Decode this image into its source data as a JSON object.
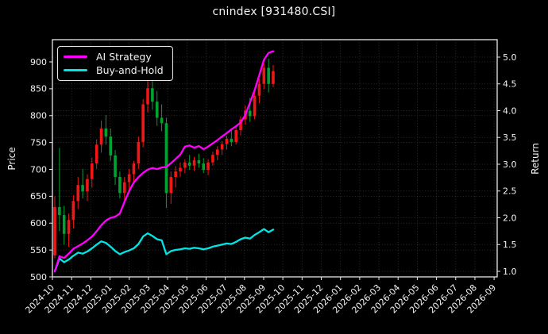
{
  "title": "cnindex [931480.CSI]",
  "axes": {
    "left_label": "Price",
    "right_label": "Return",
    "left_ticks": [
      900,
      850,
      800,
      750,
      700,
      650,
      600,
      550,
      500
    ],
    "right_ticks": [
      "5.0",
      "4.5",
      "4.0",
      "3.5",
      "3.0",
      "2.5",
      "2.0",
      "1.5",
      "1.0"
    ],
    "x_ticks": [
      "2024-10",
      "2024-11",
      "2024-12",
      "2025-01",
      "2025-02",
      "2025-03",
      "2025-04",
      "2025-05",
      "2025-06",
      "2025-07",
      "2025-08",
      "2025-09",
      "2025-10",
      "2025-11",
      "2025-12",
      "2026-01",
      "2026-02",
      "2026-03",
      "2026-04",
      "2026-05",
      "2026-06",
      "2026-07",
      "2026-08",
      "2026-09"
    ]
  },
  "legend": [
    {
      "label": "AI Strategy",
      "color": "#ff00ff"
    },
    {
      "label": "Buy-and-Hold",
      "color": "#00e5e5"
    }
  ],
  "colors": {
    "background": "#000000",
    "text": "#f2f2f2",
    "frame": "#e8e8e8",
    "grid": "#3a3a3a",
    "candle_up": "#f21616",
    "candle_down": "#00a332",
    "ai_line": "#ff00ff",
    "bnh_line": "#00e5e5"
  },
  "chart_data": {
    "type": "candlestick",
    "title": "cnindex [931480.CSI]",
    "ylabel_left": "Price",
    "ylabel_right": "Return",
    "price_ylim": [
      500,
      941
    ],
    "return_ylim": [
      1.0,
      5.43
    ],
    "x_axis_range": [
      "2024-10",
      "2026-09"
    ],
    "data_range": [
      "2024-10",
      "2025-09"
    ],
    "grid": "dotted, monthly vertical + both y-axes horizontal",
    "legend_position": "upper left",
    "sampling": "weekly approximation of daily candles",
    "candles": [
      [
        "2024-10-03",
        540,
        650,
        535,
        630
      ],
      [
        "2024-10-10",
        630,
        740,
        585,
        615
      ],
      [
        "2024-10-17",
        615,
        632,
        560,
        580
      ],
      [
        "2024-10-24",
        580,
        618,
        556,
        606
      ],
      [
        "2024-11-03",
        606,
        652,
        590,
        641
      ],
      [
        "2024-11-10",
        641,
        686,
        626,
        671
      ],
      [
        "2024-11-17",
        671,
        701,
        646,
        659
      ],
      [
        "2024-11-24",
        659,
        691,
        641,
        682
      ],
      [
        "2024-12-03",
        682,
        722,
        666,
        711
      ],
      [
        "2024-12-10",
        711,
        756,
        701,
        746
      ],
      [
        "2024-12-17",
        746,
        791,
        731,
        776
      ],
      [
        "2024-12-24",
        776,
        801,
        746,
        761
      ],
      [
        "2025-01-03",
        761,
        776,
        716,
        726
      ],
      [
        "2025-01-10",
        726,
        736,
        671,
        686
      ],
      [
        "2025-01-17",
        686,
        696,
        646,
        656
      ],
      [
        "2025-01-24",
        656,
        686,
        641,
        676
      ],
      [
        "2025-02-03",
        676,
        701,
        661,
        691
      ],
      [
        "2025-02-10",
        691,
        716,
        676,
        711
      ],
      [
        "2025-02-17",
        711,
        761,
        701,
        751
      ],
      [
        "2025-02-24",
        751,
        831,
        741,
        821
      ],
      [
        "2025-03-03",
        821,
        876,
        806,
        851
      ],
      [
        "2025-03-10",
        851,
        871,
        811,
        826
      ],
      [
        "2025-03-17",
        826,
        846,
        781,
        796
      ],
      [
        "2025-03-24",
        796,
        821,
        771,
        786
      ],
      [
        "2025-04-03",
        786,
        796,
        628,
        656
      ],
      [
        "2025-04-10",
        656,
        696,
        636,
        686
      ],
      [
        "2025-04-17",
        686,
        706,
        666,
        696
      ],
      [
        "2025-04-24",
        696,
        713,
        686,
        703
      ],
      [
        "2025-05-03",
        703,
        719,
        693,
        713
      ],
      [
        "2025-05-10",
        713,
        727,
        699,
        707
      ],
      [
        "2025-05-17",
        707,
        723,
        697,
        717
      ],
      [
        "2025-05-24",
        717,
        729,
        703,
        711
      ],
      [
        "2025-06-03",
        711,
        721,
        693,
        699
      ],
      [
        "2025-06-10",
        699,
        719,
        689,
        713
      ],
      [
        "2025-06-17",
        713,
        733,
        707,
        727
      ],
      [
        "2025-06-24",
        727,
        743,
        717,
        737
      ],
      [
        "2025-07-03",
        737,
        753,
        727,
        747
      ],
      [
        "2025-07-10",
        747,
        763,
        737,
        757
      ],
      [
        "2025-07-17",
        757,
        773,
        743,
        751
      ],
      [
        "2025-07-24",
        751,
        779,
        746,
        773
      ],
      [
        "2025-08-03",
        773,
        799,
        763,
        793
      ],
      [
        "2025-08-10",
        793,
        819,
        783,
        809
      ],
      [
        "2025-08-17",
        809,
        833,
        789,
        799
      ],
      [
        "2025-08-24",
        799,
        843,
        793,
        837
      ],
      [
        "2025-09-03",
        837,
        869,
        823,
        859
      ],
      [
        "2025-09-10",
        859,
        899,
        849,
        889
      ],
      [
        "2025-09-17",
        889,
        906,
        843,
        859
      ],
      [
        "2025-09-24",
        859,
        894,
        853,
        883
      ]
    ],
    "series": [
      {
        "name": "AI Strategy",
        "axis": "right",
        "color": "#ff00ff",
        "values": [
          1.0,
          1.28,
          1.25,
          1.33,
          1.42,
          1.47,
          1.52,
          1.58,
          1.65,
          1.75,
          1.86,
          1.95,
          2.0,
          2.02,
          2.08,
          2.3,
          2.5,
          2.66,
          2.76,
          2.84,
          2.9,
          2.93,
          2.91,
          2.94,
          2.95,
          3.02,
          3.1,
          3.18,
          3.33,
          3.35,
          3.31,
          3.34,
          3.28,
          3.33,
          3.39,
          3.45,
          3.52,
          3.58,
          3.65,
          3.71,
          3.78,
          3.92,
          4.15,
          4.38,
          4.66,
          4.95,
          5.08,
          5.11
        ]
      },
      {
        "name": "Buy-and-Hold",
        "axis": "right",
        "color": "#00e5e5",
        "values": [
          1.0,
          1.24,
          1.17,
          1.22,
          1.29,
          1.35,
          1.33,
          1.37,
          1.43,
          1.5,
          1.56,
          1.53,
          1.46,
          1.38,
          1.32,
          1.36,
          1.39,
          1.43,
          1.51,
          1.65,
          1.71,
          1.66,
          1.6,
          1.58,
          1.32,
          1.38,
          1.4,
          1.41,
          1.43,
          1.42,
          1.44,
          1.43,
          1.41,
          1.43,
          1.46,
          1.48,
          1.5,
          1.52,
          1.51,
          1.55,
          1.6,
          1.63,
          1.61,
          1.68,
          1.73,
          1.79,
          1.73,
          1.78
        ]
      }
    ]
  }
}
